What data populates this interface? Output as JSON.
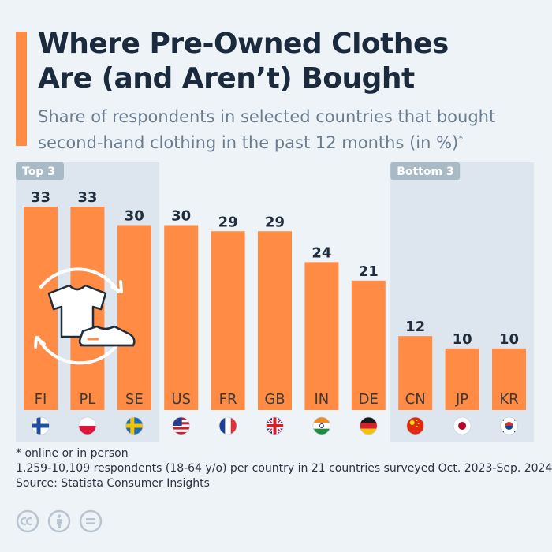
{
  "header": {
    "title_line1": "Where Pre-Owned Clothes",
    "title_line2": "Are (and Aren’t) Bought",
    "subtitle_line1": "Share of respondents in selected countries that bought",
    "subtitle_line2": "second-hand clothing in the past 12 months (in %)",
    "subtitle_mark": "*"
  },
  "chart_data": {
    "type": "bar",
    "categories": [
      "FI",
      "PL",
      "SE",
      "US",
      "FR",
      "GB",
      "IN",
      "DE",
      "CN",
      "JP",
      "KR"
    ],
    "values": [
      33,
      33,
      30,
      30,
      29,
      29,
      24,
      21,
      12,
      10,
      10
    ],
    "ylim": [
      0,
      33
    ],
    "groups": [
      {
        "label": "Top 3",
        "categories": [
          "FI",
          "PL",
          "SE"
        ]
      },
      {
        "label": "Bottom 3",
        "categories": [
          "CN",
          "JP",
          "KR"
        ]
      }
    ],
    "title": "Where Pre-Owned Clothes Are (and Aren’t) Bought",
    "xlabel": "",
    "ylabel": "",
    "grid": false,
    "legend": "none"
  },
  "colors": {
    "bar": "#ff8b45",
    "accent": "#ff8b45",
    "group_band": "#dde6ef",
    "group_label_bg": "#a9bac7",
    "title": "#1b2a3d",
    "subtitle": "#6b7d8f",
    "value_label": "#1f2d3d",
    "category_label": "#3a3a3a"
  },
  "icons": {
    "illustration": "shirt-and-sneaker-recycle-icon",
    "flags": [
      "finland-flag-icon",
      "poland-flag-icon",
      "sweden-flag-icon",
      "usa-flag-icon",
      "france-flag-icon",
      "uk-flag-icon",
      "india-flag-icon",
      "germany-flag-icon",
      "china-flag-icon",
      "japan-flag-icon",
      "korea-flag-icon"
    ],
    "license": [
      "cc-icon",
      "attribution-icon",
      "no-derivatives-icon"
    ]
  },
  "footnotes": {
    "note": "* online or in person",
    "sample": "1,259-10,109 respondents (18-64 y/o) per country in 21 countries surveyed Oct. 2023-Sep. 2024",
    "source": "Source: Statista Consumer Insights"
  }
}
